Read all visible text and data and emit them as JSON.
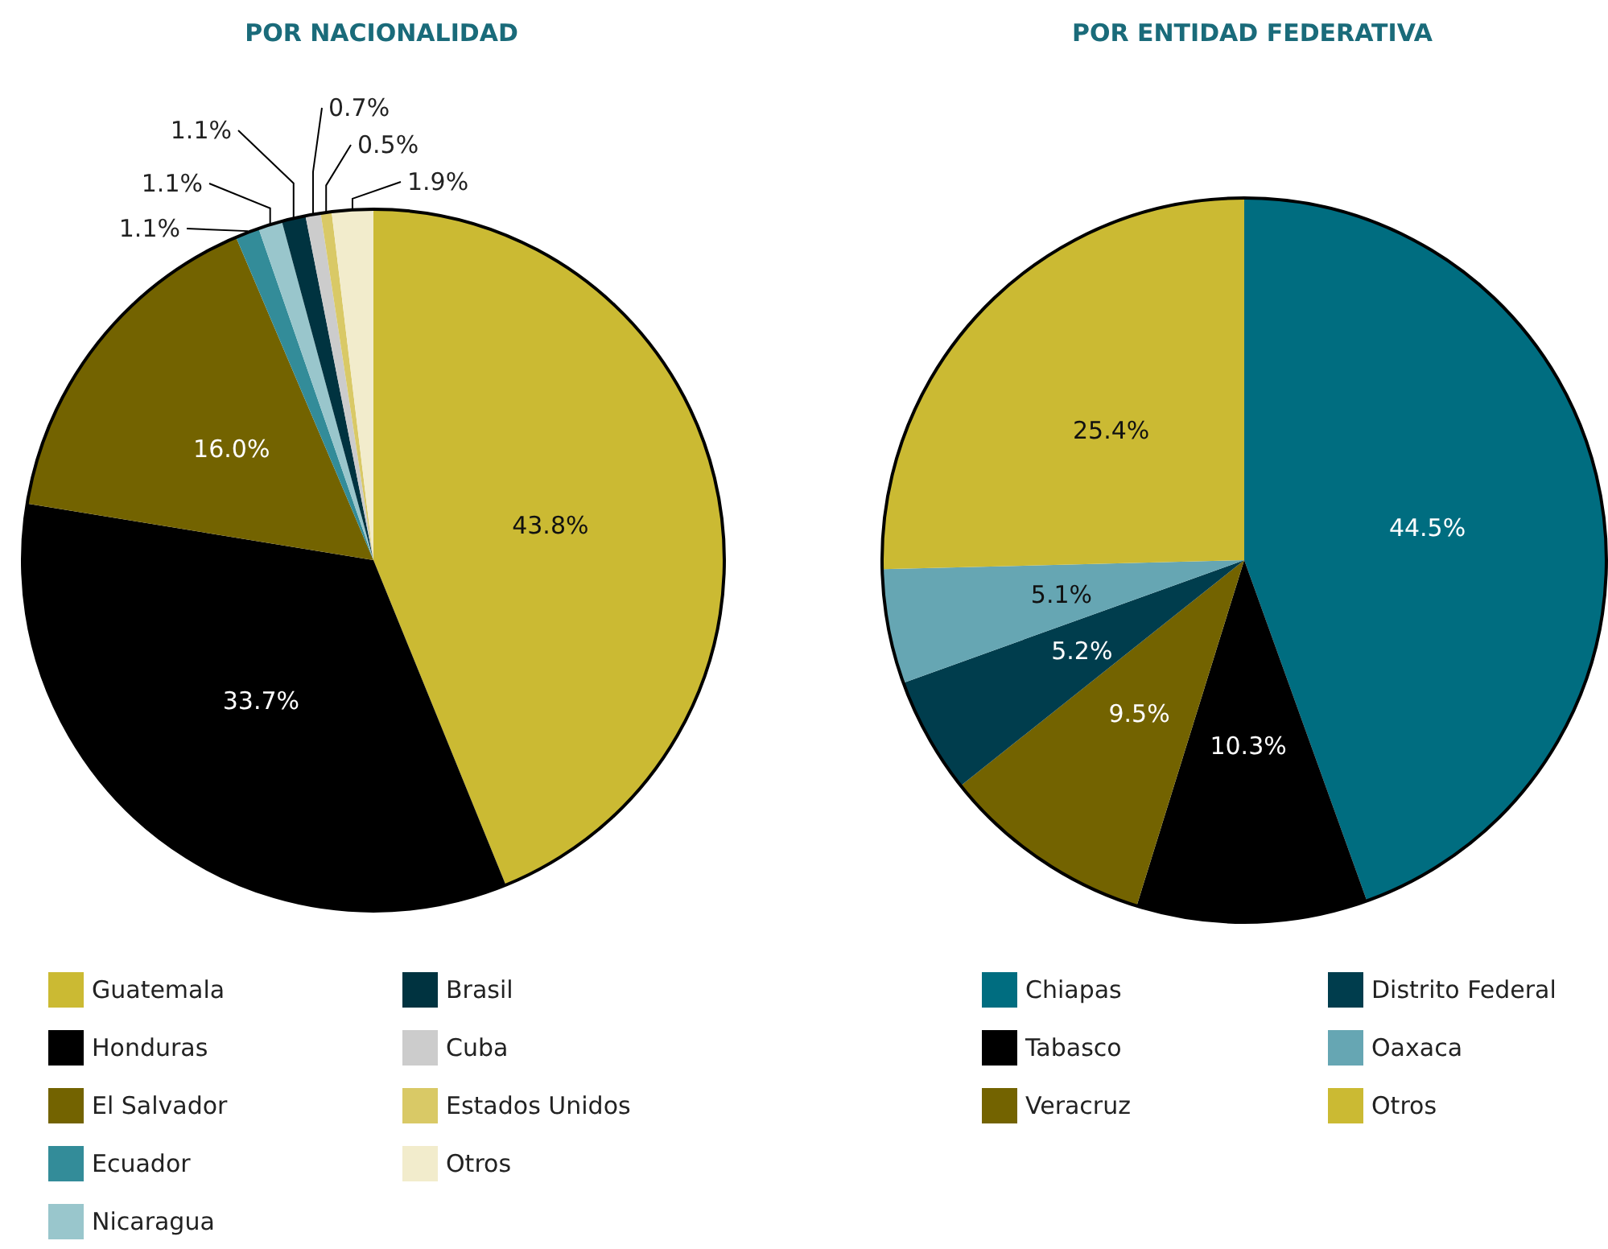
{
  "chart_data": [
    {
      "type": "pie",
      "title": "POR NACIONALIDAD",
      "categories": [
        "Guatemala",
        "Honduras",
        "El Salvador",
        "Ecuador",
        "Nicaragua",
        "Brasil",
        "Cuba",
        "Estados Unidos",
        "Otros"
      ],
      "values": [
        43.8,
        33.7,
        16.0,
        1.1,
        1.1,
        1.1,
        0.7,
        0.5,
        1.9
      ],
      "value_labels": [
        "43.8%",
        "33.7%",
        "16.0%",
        "1.1%",
        "1.1%",
        "1.1%",
        "0.7%",
        "0.5%",
        "1.9%"
      ],
      "colors": [
        "#cbba33",
        "#000000",
        "#736300",
        "#338c99",
        "#99c6cc",
        "#003340",
        "#cccccc",
        "#d9c966",
        "#f2eccc"
      ],
      "legend": "bottom"
    },
    {
      "type": "pie",
      "title": "POR ENTIDAD FEDERATIVA",
      "categories": [
        "Chiapas",
        "Tabasco",
        "Veracruz",
        "Distrito Federal",
        "Oaxaca",
        "Otros"
      ],
      "values": [
        44.5,
        10.3,
        9.5,
        5.2,
        5.1,
        25.4
      ],
      "value_labels": [
        "44.5%",
        "10.3%",
        "9.5%",
        "5.2%",
        "5.1%",
        "25.4%"
      ],
      "colors": [
        "#006d80",
        "#000000",
        "#736300",
        "#003d4d",
        "#66a6b3",
        "#cbba33"
      ],
      "legend": "bottom"
    }
  ]
}
